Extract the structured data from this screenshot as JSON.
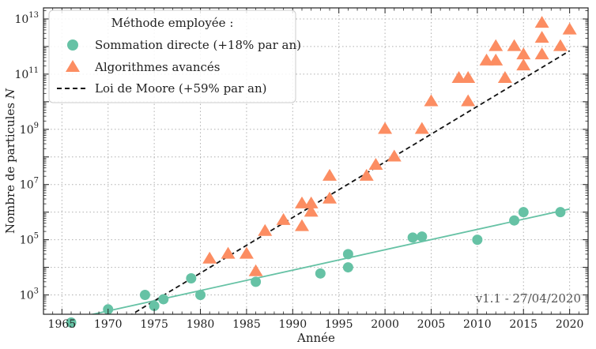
{
  "chart_data": {
    "type": "scatter",
    "xlabel": "Année",
    "ylabel": "Nombre de particules",
    "ylabel_symbol": "N",
    "xlim": [
      1963,
      2022
    ],
    "ylim_log10": [
      2.3,
      13.4
    ],
    "y_scale": "log",
    "grid": true,
    "x_ticks": [
      1965,
      1970,
      1975,
      1980,
      1985,
      1990,
      1995,
      2000,
      2005,
      2010,
      2015,
      2020
    ],
    "y_ticks": [
      {
        "value": 1000,
        "base": "10",
        "exp": "3"
      },
      {
        "value": 100000,
        "base": "10",
        "exp": "5"
      },
      {
        "value": 10000000,
        "base": "10",
        "exp": "7"
      },
      {
        "value": 1000000000,
        "base": "10",
        "exp": "9"
      },
      {
        "value": 100000000000,
        "base": "10",
        "exp": "11"
      },
      {
        "value": 10000000000000,
        "base": "10",
        "exp": "13"
      }
    ],
    "legend": {
      "title": "Méthode employée :",
      "placement": "top-left",
      "entries": [
        {
          "label": "Sommation directe (+18% par an)",
          "marker": "circle",
          "color": "#66c2a5"
        },
        {
          "label": "Algorithmes avancés",
          "marker": "triangle",
          "color": "#fc8d62"
        },
        {
          "label": "Loi de Moore (+59% par an)",
          "marker": "dashed-line",
          "color": "#111111"
        }
      ]
    },
    "annotation": "v1.1 - 27/04/2020",
    "series": [
      {
        "name": "Sommation directe (+18% par an)",
        "marker": "circle",
        "color": "#66c2a5",
        "points": [
          [
            1966,
            100
          ],
          [
            1970,
            300
          ],
          [
            1974,
            1000
          ],
          [
            1975,
            400
          ],
          [
            1976,
            700
          ],
          [
            1979,
            4000
          ],
          [
            1980,
            1000
          ],
          [
            1986,
            3000
          ],
          [
            1993,
            6000
          ],
          [
            1996,
            10000
          ],
          [
            1996,
            30000
          ],
          [
            2003,
            120000
          ],
          [
            2004,
            130000
          ],
          [
            2010,
            100000
          ],
          [
            2014,
            500000
          ],
          [
            2015,
            1000000
          ],
          [
            2019,
            1000000
          ]
        ],
        "trend": {
          "style": "solid",
          "from": [
            1963,
            80
          ],
          "to": [
            2020,
            1300000
          ]
        }
      },
      {
        "name": "Algorithmes avancés",
        "marker": "triangle",
        "color": "#fc8d62",
        "points": [
          [
            1981,
            20000
          ],
          [
            1983,
            30000
          ],
          [
            1985,
            30000
          ],
          [
            1986,
            7000
          ],
          [
            1987,
            200000
          ],
          [
            1989,
            500000
          ],
          [
            1991,
            300000
          ],
          [
            1991,
            2000000
          ],
          [
            1992,
            1000000
          ],
          [
            1992,
            2000000
          ],
          [
            1994,
            3000000
          ],
          [
            1994,
            20000000
          ],
          [
            1998,
            20000000
          ],
          [
            1999,
            50000000
          ],
          [
            2000,
            1000000000
          ],
          [
            2001,
            100000000
          ],
          [
            2004,
            1000000000
          ],
          [
            2005,
            10000000000
          ],
          [
            2008,
            70000000000
          ],
          [
            2009,
            70000000000
          ],
          [
            2009,
            10000000000
          ],
          [
            2011,
            300000000000
          ],
          [
            2012,
            300000000000
          ],
          [
            2012,
            1000000000000
          ],
          [
            2013,
            70000000000
          ],
          [
            2014,
            1000000000000
          ],
          [
            2015,
            200000000000
          ],
          [
            2015,
            500000000000
          ],
          [
            2017,
            500000000000
          ],
          [
            2017,
            2000000000000
          ],
          [
            2017,
            7000000000000
          ],
          [
            2019,
            1000000000000
          ],
          [
            2020,
            4000000000000
          ]
        ]
      },
      {
        "name": "Loi de Moore (+59% par an)",
        "marker": "dashed-line",
        "color": "#111111",
        "trend": {
          "style": "dashed",
          "from": [
            1970,
            60
          ],
          "to": [
            2020,
            700000000000
          ]
        }
      }
    ]
  }
}
